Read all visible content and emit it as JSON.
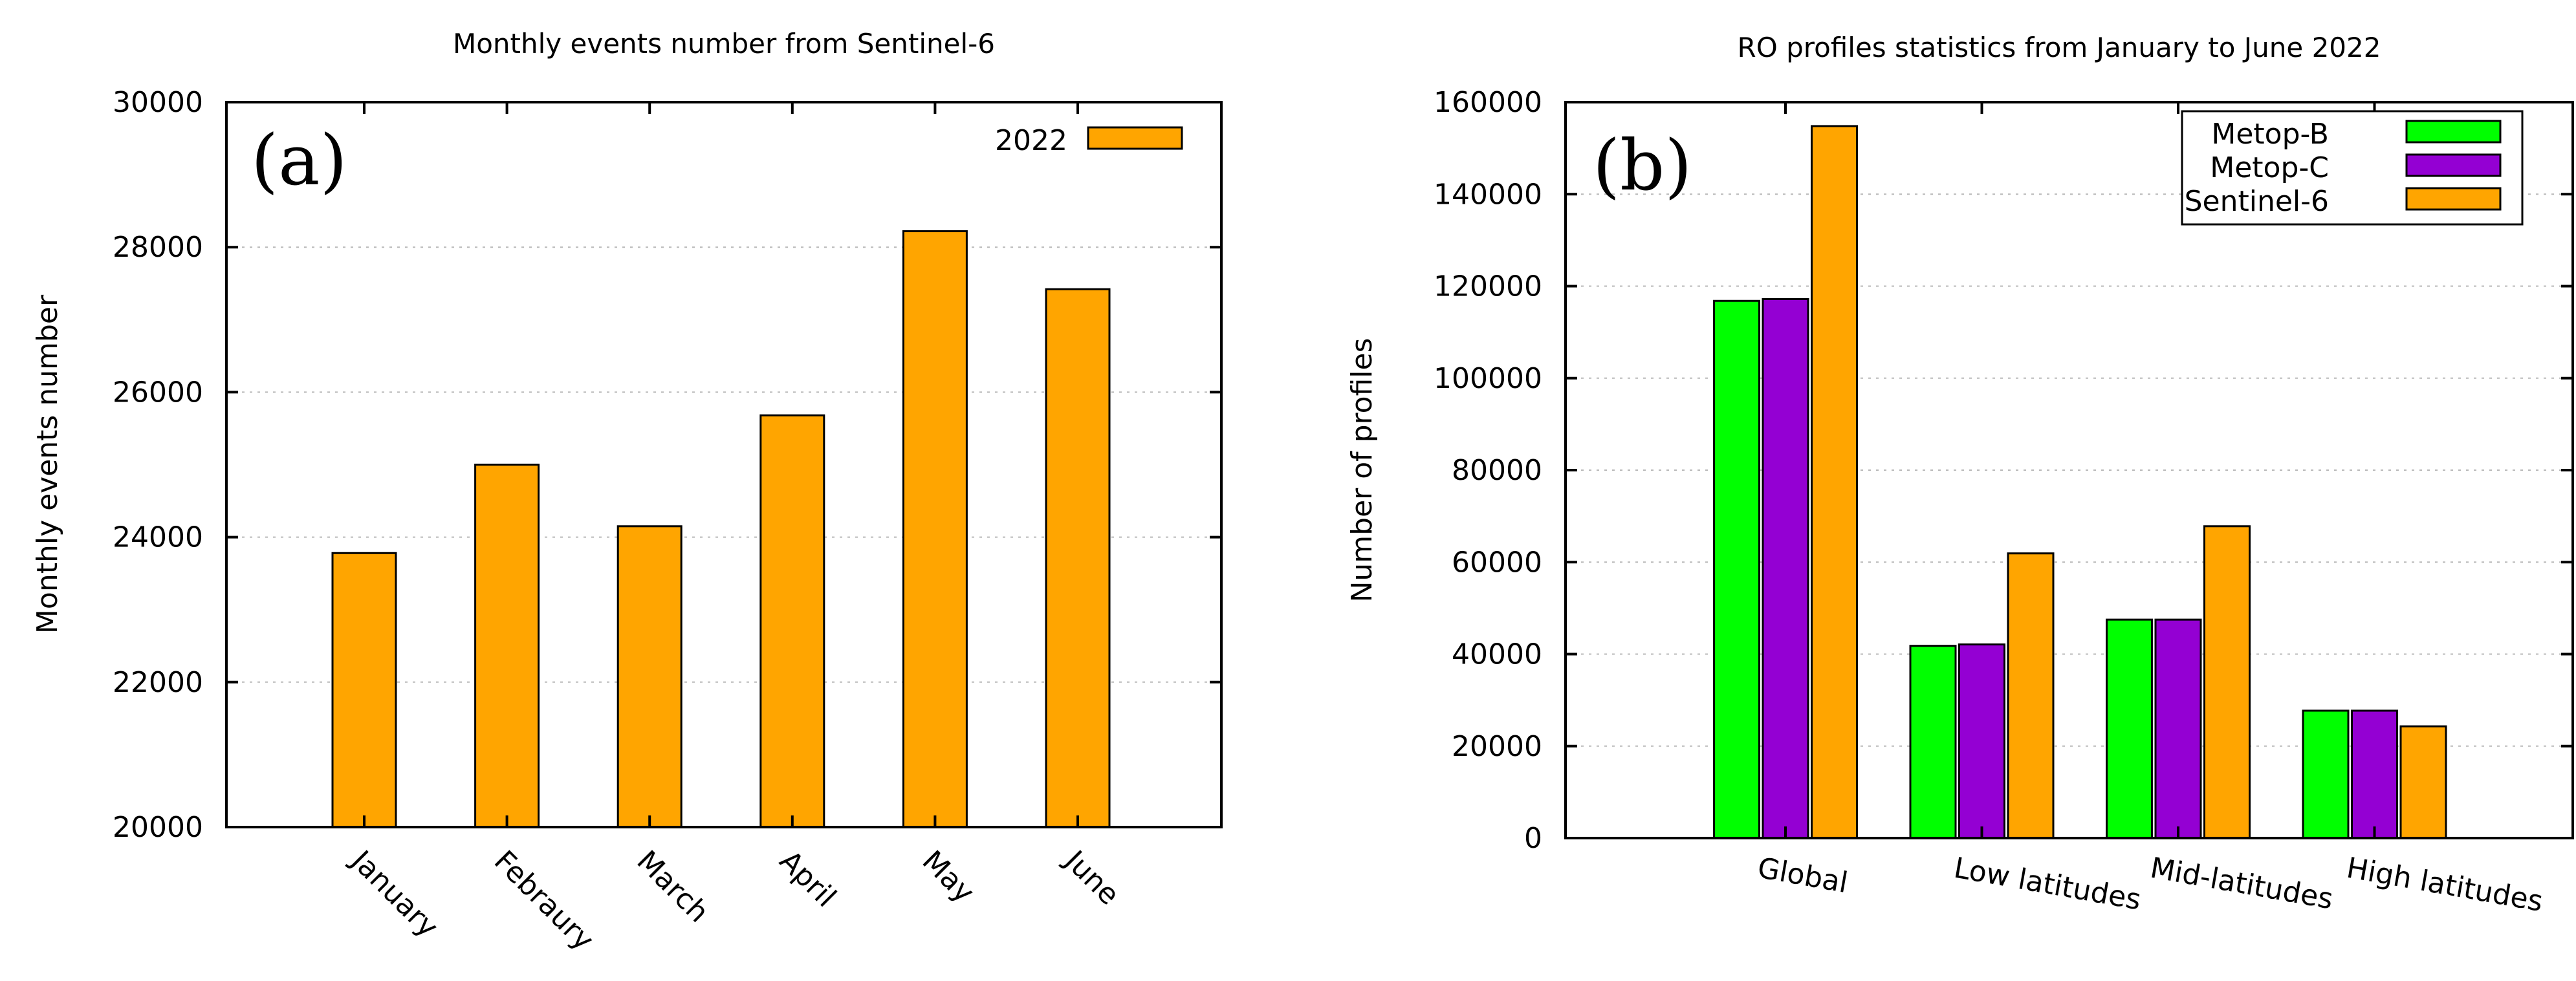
{
  "chart_data": [
    {
      "type": "bar",
      "title": "Monthly events number from Sentinel-6",
      "panel_label": "(a)",
      "xlabel": "",
      "ylabel": "Monthly events number",
      "categories": [
        "January",
        "Febraury",
        "March",
        "April",
        "May",
        "June"
      ],
      "series": [
        {
          "name": "2022",
          "color": "#ffa500",
          "values": [
            23780,
            25000,
            24150,
            25680,
            28220,
            27420
          ]
        }
      ],
      "ylim": [
        20000,
        30000
      ],
      "yticks": [
        "20000",
        "22000",
        "24000",
        "26000",
        "28000",
        "30000"
      ],
      "grid": true,
      "legend": "top-right"
    },
    {
      "type": "bar",
      "title": "RO profiles statistics from January to June 2022",
      "panel_label": "(b)",
      "xlabel": "",
      "ylabel": "Number of profiles",
      "categories": [
        "Global",
        "Low latitudes",
        "Mid-latitudes",
        "High latitudes"
      ],
      "series": [
        {
          "name": "Metop-B",
          "color": "#00ff00",
          "values": [
            116800,
            41800,
            47500,
            27700
          ]
        },
        {
          "name": "Metop-C",
          "color": "#9400d3",
          "values": [
            117200,
            42100,
            47500,
            27700
          ]
        },
        {
          "name": "Sentinel-6",
          "color": "#ffa500",
          "values": [
            154800,
            61900,
            67800,
            24300
          ]
        }
      ],
      "ylim": [
        0,
        160000
      ],
      "yticks": [
        "0",
        "20000",
        "40000",
        "60000",
        "80000",
        "100000",
        "120000",
        "140000",
        "160000"
      ],
      "grid": true,
      "legend": "top-right"
    }
  ]
}
